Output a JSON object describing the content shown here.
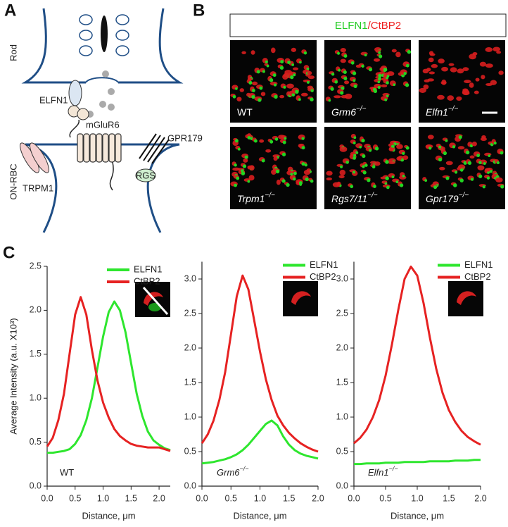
{
  "panel_labels": {
    "a": "A",
    "b": "B",
    "c": "C"
  },
  "panel_a": {
    "labels": {
      "rod": "Rod",
      "on_rbc": "ON-RBC",
      "elfn1": "ELFN1",
      "mglur6": "mGluR6",
      "gpr179": "GPR179",
      "trpm1": "TRPM1",
      "rgs": "RGS"
    }
  },
  "panel_b": {
    "title": {
      "left": "ELFN1",
      "sep": "/",
      "right": "CtBP2"
    },
    "images": [
      {
        "name": "WT"
      },
      {
        "name": "Grm6",
        "sup": "−/−"
      },
      {
        "name": "Elfn1",
        "sup": "−/−"
      },
      {
        "name": "Trpm1",
        "sup": "−/−"
      },
      {
        "name": "Rgs7/11",
        "sup": "−/−"
      },
      {
        "name": "Gpr179",
        "sup": "−/−"
      }
    ]
  },
  "chart_data": [
    {
      "type": "line",
      "genotype": {
        "name": "WT"
      },
      "x_label": "Distance, μm",
      "y_label": "Average Intensity (a.u. X10³)",
      "x": [
        0,
        0.1,
        0.2,
        0.3,
        0.4,
        0.5,
        0.6,
        0.7,
        0.8,
        0.9,
        1.0,
        1.1,
        1.2,
        1.3,
        1.4,
        1.5,
        1.6,
        1.7,
        1.8,
        1.9,
        2.0,
        2.1,
        2.2
      ],
      "xlim": [
        0,
        2.2
      ],
      "xticks": [
        {
          "value": 0,
          "label": "0.0"
        },
        0.5,
        {
          "value": 1,
          "label": "1.0"
        },
        1.5,
        {
          "value": 2,
          "label": "2.0"
        }
      ],
      "ylim": [
        0,
        2.5
      ],
      "yticks": [
        {
          "value": 0,
          "label": "0.0"
        },
        0.5,
        {
          "value": 1,
          "label": "1.0"
        },
        1.5,
        {
          "value": 2,
          "label": "2.0"
        },
        2.5
      ],
      "series": [
        {
          "name": "ELFN1",
          "color": "#2ee62e",
          "values": [
            0.38,
            0.38,
            0.39,
            0.4,
            0.42,
            0.48,
            0.58,
            0.75,
            1.0,
            1.35,
            1.7,
            1.98,
            2.1,
            2.0,
            1.75,
            1.4,
            1.05,
            0.8,
            0.62,
            0.52,
            0.47,
            0.43,
            0.41
          ]
        },
        {
          "name": "CtBP2",
          "color": "#e62222",
          "values": [
            0.45,
            0.55,
            0.75,
            1.05,
            1.5,
            1.95,
            2.15,
            1.95,
            1.55,
            1.2,
            0.95,
            0.78,
            0.65,
            0.57,
            0.52,
            0.48,
            0.46,
            0.45,
            0.44,
            0.44,
            0.44,
            0.42,
            0.4
          ]
        }
      ]
    },
    {
      "type": "line",
      "genotype": {
        "name": "Grm6",
        "sup": "−/−"
      },
      "x_label": "Distance, μm",
      "x": [
        0,
        0.1,
        0.2,
        0.3,
        0.4,
        0.5,
        0.6,
        0.7,
        0.8,
        0.9,
        1.0,
        1.1,
        1.2,
        1.3,
        1.4,
        1.5,
        1.6,
        1.7,
        1.8,
        1.9,
        2.0
      ],
      "xlim": [
        0,
        2
      ],
      "xticks": [
        {
          "value": 0,
          "label": "0.0"
        },
        0.5,
        {
          "value": 1,
          "label": "1.0"
        },
        1.5,
        {
          "value": 2,
          "label": "2.0"
        }
      ],
      "ylim": [
        0,
        3.25
      ],
      "yticks": [
        {
          "value": 0,
          "label": "0.0"
        },
        0.5,
        {
          "value": 1,
          "label": "1.0"
        },
        1.5,
        {
          "value": 2,
          "label": "2.0"
        },
        2.5,
        {
          "value": 3,
          "label": "3.0"
        }
      ],
      "series": [
        {
          "name": "ELFN1",
          "color": "#2ee62e",
          "values": [
            0.33,
            0.34,
            0.35,
            0.37,
            0.39,
            0.42,
            0.46,
            0.52,
            0.6,
            0.7,
            0.8,
            0.9,
            0.95,
            0.88,
            0.72,
            0.6,
            0.52,
            0.47,
            0.44,
            0.42,
            0.4
          ]
        },
        {
          "name": "CtBP2",
          "color": "#e62222",
          "values": [
            0.62,
            0.75,
            0.95,
            1.25,
            1.65,
            2.2,
            2.75,
            3.05,
            2.85,
            2.4,
            1.95,
            1.55,
            1.25,
            1.02,
            0.88,
            0.77,
            0.69,
            0.62,
            0.57,
            0.53,
            0.5
          ]
        }
      ]
    },
    {
      "type": "line",
      "genotype": {
        "name": "Elfn1",
        "sup": "−/−"
      },
      "x_label": "Distance, μm",
      "x": [
        0,
        0.1,
        0.2,
        0.3,
        0.4,
        0.5,
        0.6,
        0.7,
        0.8,
        0.9,
        1.0,
        1.1,
        1.2,
        1.3,
        1.4,
        1.5,
        1.6,
        1.7,
        1.8,
        1.9,
        2.0
      ],
      "xlim": [
        0,
        2
      ],
      "xticks": [
        {
          "value": 0,
          "label": "0.0"
        },
        0.5,
        {
          "value": 1,
          "label": "1.0"
        },
        1.5,
        {
          "value": 2,
          "label": "2.0"
        }
      ],
      "ylim": [
        0,
        3.25
      ],
      "yticks": [
        {
          "value": 0,
          "label": "0.0"
        },
        0.5,
        {
          "value": 1,
          "label": "1.0"
        },
        1.5,
        {
          "value": 2,
          "label": "2.0"
        },
        2.5,
        {
          "value": 3,
          "label": "3.0"
        }
      ],
      "series": [
        {
          "name": "ELFN1",
          "color": "#2ee62e",
          "values": [
            0.32,
            0.32,
            0.33,
            0.33,
            0.33,
            0.34,
            0.34,
            0.34,
            0.35,
            0.35,
            0.35,
            0.35,
            0.36,
            0.36,
            0.36,
            0.36,
            0.37,
            0.37,
            0.37,
            0.38,
            0.38
          ]
        },
        {
          "name": "CtBP2",
          "color": "#e62222",
          "values": [
            0.62,
            0.7,
            0.82,
            1.0,
            1.25,
            1.6,
            2.05,
            2.55,
            3.0,
            3.18,
            3.05,
            2.65,
            2.15,
            1.7,
            1.35,
            1.1,
            0.93,
            0.8,
            0.71,
            0.65,
            0.6
          ]
        }
      ]
    }
  ]
}
